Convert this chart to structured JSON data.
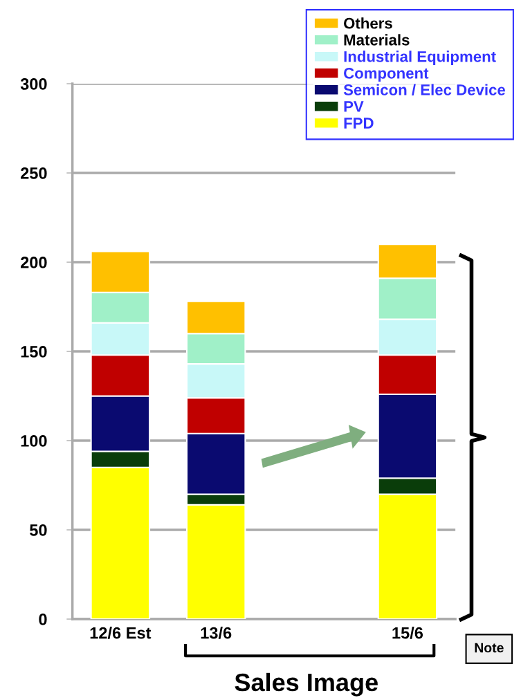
{
  "chart_data": {
    "type": "bar",
    "stacked": true,
    "categories": [
      "12/6 Est",
      "13/6",
      null,
      "15/6"
    ],
    "series": [
      {
        "name": "FPD",
        "color": "#ffff00",
        "values": [
          85,
          64,
          null,
          70
        ]
      },
      {
        "name": "PV",
        "color": "#0a3d0a",
        "values": [
          9,
          6,
          null,
          9
        ]
      },
      {
        "name": "Semicon / Elec Device",
        "color": "#0a0a70",
        "values": [
          31,
          34,
          null,
          47
        ]
      },
      {
        "name": "Component",
        "color": "#c00000",
        "values": [
          23,
          20,
          null,
          22
        ]
      },
      {
        "name": "Industrial Equipment",
        "color": "#c8f8f8",
        "values": [
          18,
          19,
          null,
          20
        ]
      },
      {
        "name": "Materials",
        "color": "#a0f0c8",
        "values": [
          17,
          17,
          null,
          23
        ]
      },
      {
        "name": "Others",
        "color": "#ffc000",
        "values": [
          23,
          18,
          null,
          19
        ]
      }
    ],
    "ylim": [
      0,
      300
    ],
    "yticks": [
      0,
      50,
      100,
      150,
      200,
      250,
      300
    ],
    "grid": "y",
    "legend": "top right",
    "annotations": [
      "Sales Image",
      "Note"
    ]
  }
}
